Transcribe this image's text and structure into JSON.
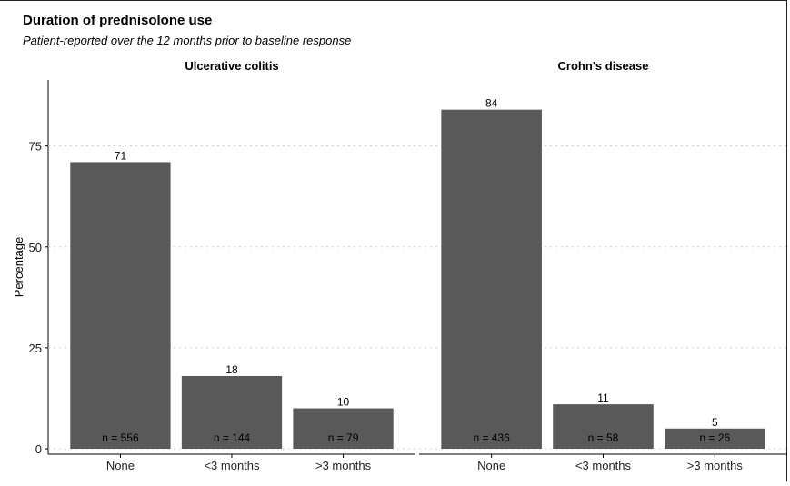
{
  "chart_data": {
    "type": "bar",
    "title": "Duration of prednisolone use",
    "subtitle": "Patient-reported over the 12 months prior to baseline response",
    "ylabel": "Percentage",
    "xlabel": "",
    "ylim": [
      0,
      90
    ],
    "yticks": [
      0,
      25,
      50,
      75
    ],
    "grid": "horizontal-dotted",
    "legend": "none",
    "bar_color": "#595959",
    "categories": [
      "None",
      "<3 months",
      ">3 months"
    ],
    "panels": [
      {
        "name": "Ulcerative colitis",
        "values": [
          71,
          18,
          10
        ],
        "value_labels": [
          "71",
          "18",
          "10"
        ],
        "n_labels": [
          "n = 556",
          "n = 144",
          "n = 79"
        ]
      },
      {
        "name": "Crohn's disease",
        "values": [
          84,
          11,
          5
        ],
        "value_labels": [
          "84",
          "11",
          "5"
        ],
        "n_labels": [
          "n = 436",
          "n = 58",
          "n = 26"
        ]
      }
    ]
  }
}
